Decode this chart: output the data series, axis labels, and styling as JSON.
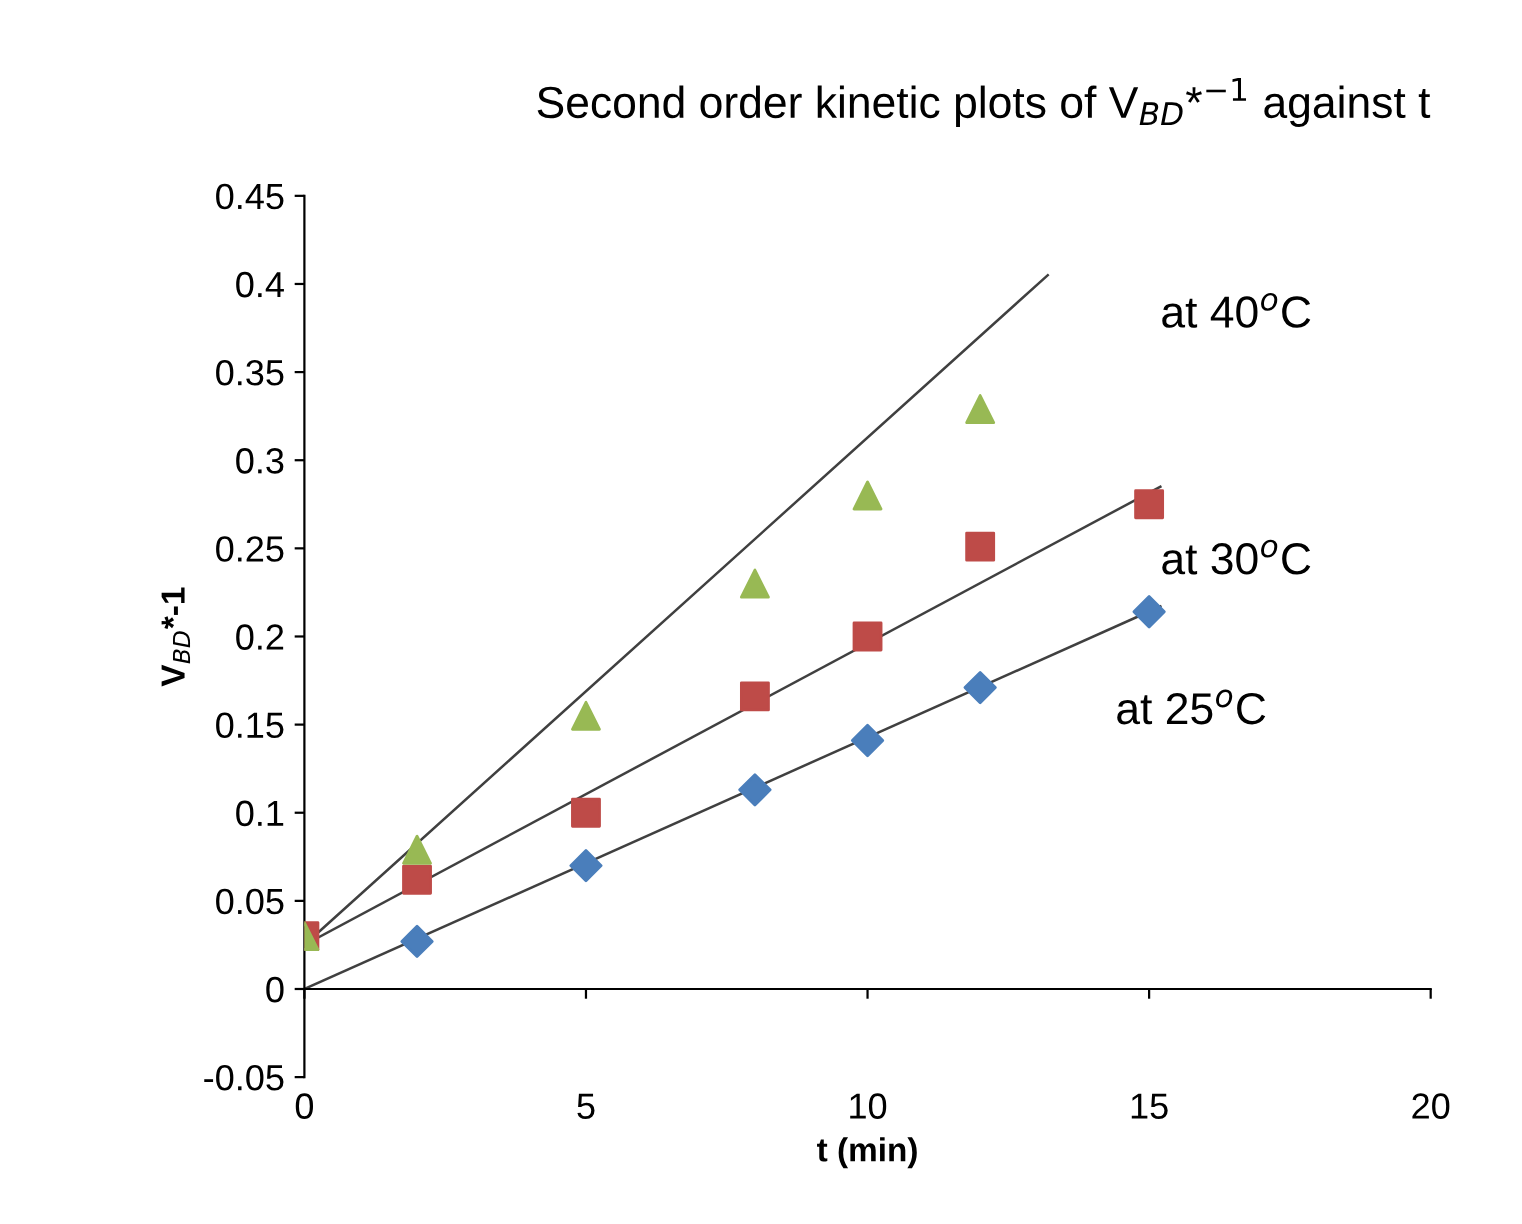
{
  "chart_data": {
    "type": "scatter",
    "title": "Second order kinetic plots of V$_{BD}$*$^{−1}$ against t",
    "xlabel": "t (min)",
    "ylabel": "V$_{BD}$*-1",
    "xlim": [
      0,
      20
    ],
    "xticks": [
      0,
      5,
      10,
      15,
      20
    ],
    "ylim": [
      -0.05,
      0.45
    ],
    "yticks": [
      -0.05,
      0,
      0.05,
      0.1,
      0.15,
      0.2,
      0.25,
      0.3,
      0.35,
      0.4,
      0.45
    ],
    "series": [
      {
        "color": "#4a7ebb",
        "marker": "diamond",
        "x": [
          2,
          5,
          8,
          10,
          12,
          15
        ],
        "values": [
          0.027,
          0.07,
          0.113,
          0.141,
          0.171,
          0.214
        ]
      },
      {
        "color": "#be4b48",
        "marker": "square",
        "x": [
          0,
          2,
          5,
          8,
          10,
          12,
          15
        ],
        "values": [
          0.03,
          0.062,
          0.1,
          0.166,
          0.2,
          0.251,
          0.275
        ]
      },
      {
        "color": "#98b954",
        "marker": "triangle",
        "x": [
          0,
          2,
          5,
          8,
          10,
          12
        ],
        "values": [
          0.03,
          0.079,
          0.155,
          0.23,
          0.28,
          0.329
        ]
      },
      {
        "type": "line",
        "color": "#404040",
        "x": [
          0,
          15.2
        ],
        "values": [
          0,
          0.217
        ]
      },
      {
        "type": "line",
        "color": "#404040",
        "x": [
          0,
          15.2
        ],
        "values": [
          0.025,
          0.285
        ]
      },
      {
        "type": "line",
        "color": "#404040",
        "x": [
          0,
          13.2
        ],
        "values": [
          0.025,
          0.405
        ]
      }
    ],
    "annotations": [
      "at 25$^{o}$C",
      "at 30$^{o}$C",
      "at 40$^{o}$C"
    ]
  }
}
